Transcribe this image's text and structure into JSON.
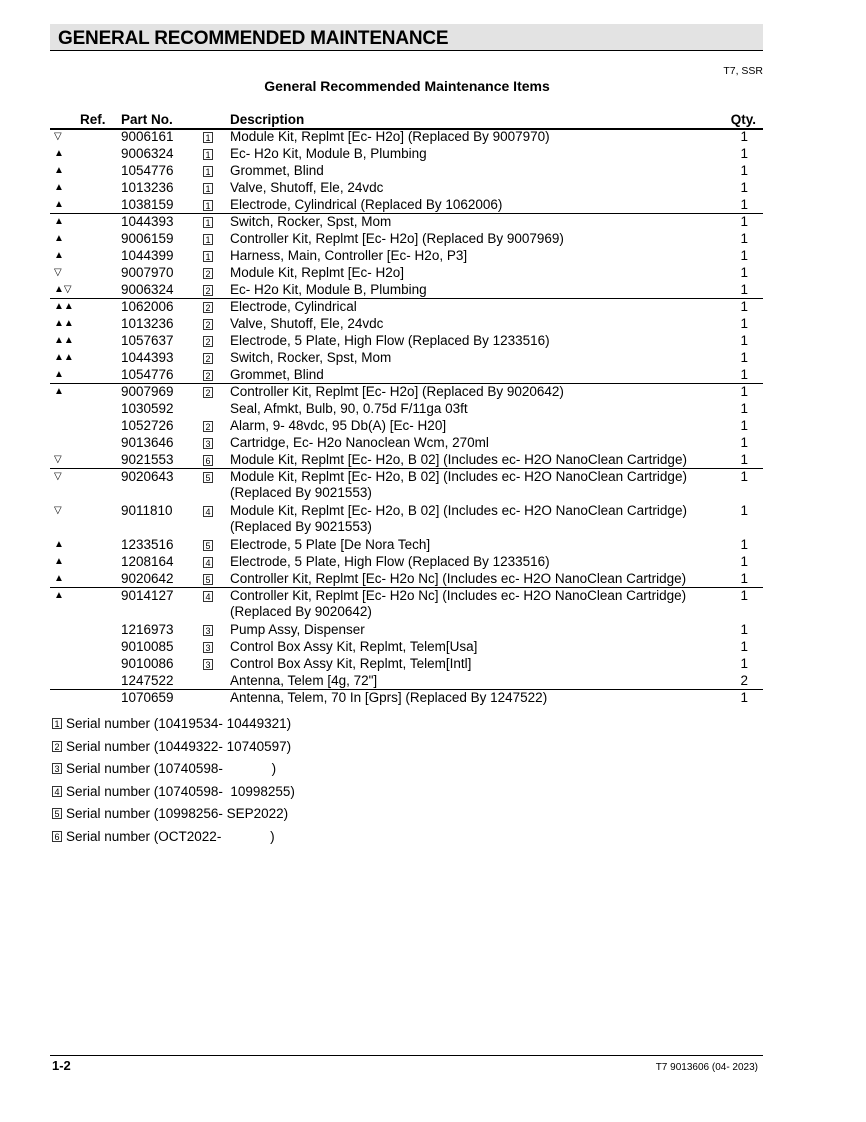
{
  "header": {
    "title": "GENERAL RECOMMENDED MAINTENANCE",
    "model": "T7, SSR",
    "subtitle": "General Recommended Maintenance Items"
  },
  "table": {
    "columns": {
      "ref": "Ref.",
      "part": "Part No.",
      "desc": "Description",
      "qty": "Qty."
    },
    "rows": [
      {
        "ref": "▽",
        "part": "9006161",
        "sn": "1",
        "desc": "Module Kit, Replmt [Ec- H2o] (Replaced By 9007970)",
        "qty": "1"
      },
      {
        "ref": "▲",
        "part": "9006324",
        "sn": "1",
        "desc": "Ec- H2o Kit,  Module B, Plumbing",
        "qty": "1"
      },
      {
        "ref": "▲",
        "part": "1054776",
        "sn": "1",
        "desc": "Grommet, Blind",
        "qty": "1"
      },
      {
        "ref": "▲",
        "part": "1013236",
        "sn": "1",
        "desc": "Valve, Shutoff, Ele, 24vdc",
        "qty": "1"
      },
      {
        "ref": "▲",
        "part": "1038159",
        "sn": "1",
        "desc": "Electrode, Cylindrical (Replaced By 1062006)",
        "qty": "1"
      },
      {
        "ref": "▲",
        "part": "1044393",
        "sn": "1",
        "desc": "Switch, Rocker, Spst, Mom",
        "qty": "1"
      },
      {
        "ref": "▲",
        "part": "9006159",
        "sn": "1",
        "desc": "Controller Kit, Replmt [Ec- H2o] (Replaced By 9007969)",
        "qty": "1"
      },
      {
        "ref": "▲",
        "part": "1044399",
        "sn": "1",
        "desc": "Harness, Main, Controller [Ec- H2o, P3]",
        "qty": "1"
      },
      {
        "ref": "▽",
        "part": "9007970",
        "sn": "2",
        "desc": "Module Kit, Replmt [Ec- H2o]",
        "qty": "1"
      },
      {
        "ref": "▲▽",
        "part": "9006324",
        "sn": "2",
        "desc": "Ec- H2o Kit,  Module B, Plumbing",
        "qty": "1"
      },
      {
        "ref": "▲▲",
        "part": "1062006",
        "sn": "2",
        "desc": "Electrode, Cylindrical",
        "qty": "1"
      },
      {
        "ref": "▲▲",
        "part": "1013236",
        "sn": "2",
        "desc": "Valve, Shutoff, Ele, 24vdc",
        "qty": "1"
      },
      {
        "ref": "▲▲",
        "part": "1057637",
        "sn": "2",
        "desc": "Electrode, 5 Plate, High Flow (Replaced By 1233516)",
        "qty": "1"
      },
      {
        "ref": "▲▲",
        "part": "1044393",
        "sn": "2",
        "desc": "Switch, Rocker, Spst, Mom",
        "qty": "1"
      },
      {
        "ref": "▲",
        "part": "1054776",
        "sn": "2",
        "desc": "Grommet, Blind",
        "qty": "1"
      },
      {
        "ref": "▲",
        "part": "9007969",
        "sn": "2",
        "desc": "Controller Kit, Replmt [Ec- H2o] (Replaced By 9020642)",
        "qty": "1"
      },
      {
        "ref": "",
        "part": "1030592",
        "sn": "",
        "desc": "Seal, Afmkt, Bulb, 90, 0.75d F/11ga 03ft",
        "qty": "1"
      },
      {
        "ref": "",
        "part": "1052726",
        "sn": "2",
        "desc": "Alarm, 9- 48vdc, 95 Db(A) [Ec- H20]",
        "qty": "1"
      },
      {
        "ref": "",
        "part": "9013646",
        "sn": "3",
        "desc": "Cartridge, Ec- H2o Nanoclean Wcm, 270ml",
        "qty": "1"
      },
      {
        "ref": "▽",
        "part": "9021553",
        "sn": "6",
        "desc": "Module Kit, Replmt [Ec- H2o, B 02]  (Includes ec- H2O NanoClean Cartridge)",
        "qty": "1"
      },
      {
        "ref": "▽",
        "part": "9020643",
        "sn": "5",
        "desc": "Module Kit, Replmt [Ec- H2o, B 02]  (Includes ec- H2O NanoClean Cartridge)",
        "desc2": "(Replaced By 9021553)",
        "qty": "1"
      },
      {
        "ref": "▽",
        "part": "9011810",
        "sn": "4",
        "desc": "Module Kit, Replmt [Ec- H2o, B 02]  (Includes ec- H2O NanoClean Cartridge)",
        "desc2": "(Replaced By 9021553)",
        "qty": "1"
      },
      {
        "ref": "▲",
        "part": "1233516",
        "sn": "5",
        "desc": "Electrode, 5 Plate [De Nora Tech]",
        "qty": "1"
      },
      {
        "ref": "▲",
        "part": "1208164",
        "sn": "4",
        "desc": "Electrode, 5 Plate, High Flow (Replaced By 1233516)",
        "qty": "1"
      },
      {
        "ref": "▲",
        "part": "9020642",
        "sn": "5",
        "desc": "Controller Kit, Replmt [Ec- H2o Nc]  (Includes ec- H2O NanoClean Cartridge)",
        "qty": "1"
      },
      {
        "ref": "▲",
        "part": "9014127",
        "sn": "4",
        "desc": "Controller Kit, Replmt [Ec- H2o Nc]  (Includes ec- H2O NanoClean Cartridge)",
        "desc2": "(Replaced By 9020642)",
        "qty": "1"
      },
      {
        "ref": "",
        "part": "1216973",
        "sn": "3",
        "desc": "Pump Assy, Dispenser",
        "qty": "1"
      },
      {
        "ref": "",
        "part": "9010085",
        "sn": "3",
        "desc": "Control Box Assy Kit, Replmt, Telem[Usa]",
        "qty": "1"
      },
      {
        "ref": "",
        "part": "9010086",
        "sn": "3",
        "desc": "Control Box Assy Kit, Replmt, Telem[Intl]",
        "qty": "1"
      },
      {
        "ref": "",
        "part": "1247522",
        "sn": "",
        "desc": "Antenna, Telem [4g, 72\"]",
        "qty": "2"
      },
      {
        "ref": "",
        "part": "1070659",
        "sn": "",
        "desc": "Antenna, Telem, 70 In [Gprs] (Replaced By 1247522)",
        "qty": "1"
      }
    ]
  },
  "footnotes": [
    {
      "num": "1",
      "text": "Serial number (10419534- 10449321)"
    },
    {
      "num": "2",
      "text": "Serial number (10449322- 10740597)"
    },
    {
      "num": "3",
      "text": "Serial number (10740598-             )"
    },
    {
      "num": "4",
      "text": "Serial number (10740598-  10998255)"
    },
    {
      "num": "5",
      "text": "Serial number (10998256- SEP2022)"
    },
    {
      "num": "6",
      "text": "Serial number (OCT2022-             )"
    }
  ],
  "footer": {
    "page": "1-2",
    "doc": "T7 9013606  (04- 2023)"
  }
}
